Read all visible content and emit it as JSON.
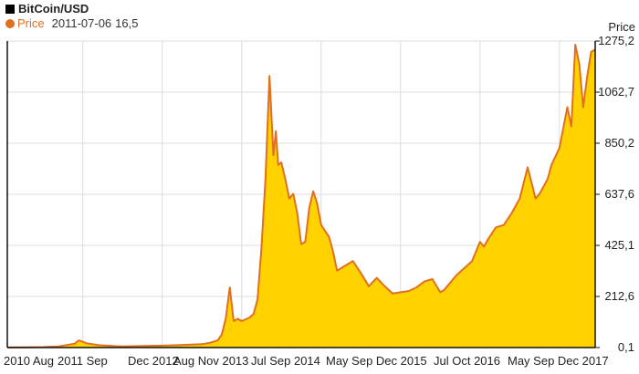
{
  "colors": {
    "fill": "#ffd200",
    "stroke": "#e07020",
    "grid": "#dddddd",
    "axis": "#111111",
    "title_square": "#000000"
  },
  "legend": {
    "title": "BitCoin/USD",
    "series_name": "Price",
    "readout_date": "2011-07-06",
    "readout_value": "16,5"
  },
  "chart_data": {
    "type": "area",
    "title": "BitCoin/USD",
    "xlabel": "",
    "ylabel": "Price",
    "ylim": [
      0.1,
      1275.2
    ],
    "yticks": [
      "0,1",
      "212,6",
      "425,1",
      "637,6",
      "850,2",
      "1062,7",
      "1275,2"
    ],
    "ytick_values": [
      0.1,
      212.6,
      425.1,
      637.6,
      850.2,
      1062.7,
      1275.2
    ],
    "xlim": [
      2010.55,
      2017.95
    ],
    "xticks": [
      "2010 Aug",
      "2011 Sep",
      "Dec 2012",
      "Aug Nov 2013",
      "Jul Sep 2014",
      "May Sep Dec 2015",
      "Jul Oct 2016",
      "May Sep Dec 2017"
    ],
    "xtick_positions": [
      2010.6,
      2011.3,
      2012.15,
      2012.9,
      2013.72,
      2014.63,
      2015.95,
      2017.1
    ],
    "grid": true,
    "legend_position": "top-left",
    "series": [
      {
        "name": "Price",
        "x": [
          2010.55,
          2010.8,
          2011.0,
          2011.2,
          2011.4,
          2011.45,
          2011.55,
          2011.7,
          2011.9,
          2012.0,
          2012.2,
          2012.5,
          2012.7,
          2012.9,
          2013.0,
          2013.1,
          2013.2,
          2013.25,
          2013.3,
          2013.35,
          2013.38,
          2013.4,
          2013.45,
          2013.5,
          2013.6,
          2013.65,
          2013.7,
          2013.75,
          2013.8,
          2013.85,
          2013.9,
          2013.93,
          2013.96,
          2014.0,
          2014.05,
          2014.1,
          2014.15,
          2014.2,
          2014.25,
          2014.3,
          2014.35,
          2014.4,
          2014.45,
          2014.5,
          2014.6,
          2014.65,
          2014.7,
          2014.8,
          2014.9,
          2015.0,
          2015.1,
          2015.2,
          2015.3,
          2015.4,
          2015.5,
          2015.6,
          2015.7,
          2015.8,
          2015.9,
          2016.0,
          2016.05,
          2016.1,
          2016.2,
          2016.3,
          2016.4,
          2016.5,
          2016.55,
          2016.6,
          2016.7,
          2016.8,
          2016.9,
          2017.0,
          2017.1,
          2017.2,
          2017.25,
          2017.3,
          2017.35,
          2017.4,
          2017.5,
          2017.6,
          2017.65,
          2017.7,
          2017.75,
          2017.8,
          2017.85,
          2017.9,
          2017.95
        ],
        "values": [
          0.5,
          1,
          2,
          5,
          16.5,
          30,
          18,
          10,
          6,
          5,
          6,
          8,
          10,
          13,
          14,
          20,
          30,
          55,
          120,
          250,
          165,
          110,
          120,
          110,
          125,
          140,
          200,
          420,
          700,
          1130,
          800,
          900,
          760,
          770,
          700,
          620,
          640,
          560,
          430,
          440,
          580,
          650,
          600,
          510,
          460,
          400,
          320,
          340,
          360,
          310,
          255,
          290,
          255,
          225,
          230,
          235,
          250,
          275,
          285,
          230,
          240,
          260,
          300,
          330,
          360,
          440,
          420,
          450,
          500,
          510,
          560,
          620,
          750,
          620,
          640,
          670,
          700,
          760,
          830,
          1000,
          920,
          1260,
          1180,
          1000,
          1130,
          1230,
          1240
        ]
      }
    ]
  }
}
